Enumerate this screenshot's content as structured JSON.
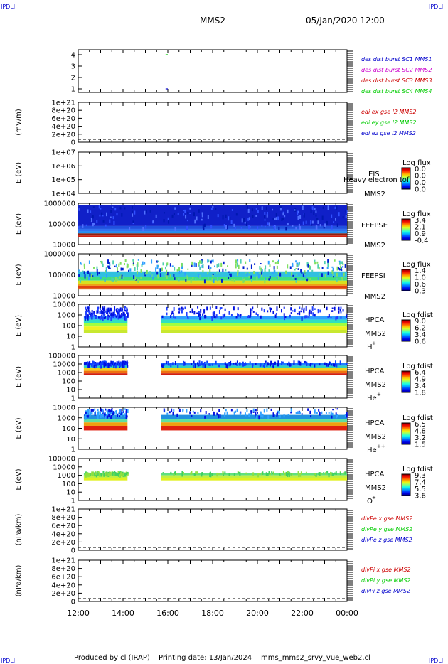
{
  "corner_tags": {
    "top_left": "IPDLI",
    "top_right": "IPDLI",
    "bottom_left": "IPDLI",
    "bottom_right": "IPDLI"
  },
  "header": {
    "title": "MMS2",
    "date": "05/Jan/2020 12:00"
  },
  "footer": {
    "producer": "Produced by cl (IRAP)",
    "printing": "Printing date: 13/Jan/2024",
    "script": "mms_mms2_srvy_vue_web2.cl"
  },
  "colors": {
    "blue": "#0000cc",
    "magenta": "#cc00cc",
    "red": "#cc0000",
    "green": "#00cc00"
  },
  "chart_data": [
    {
      "id": "p1",
      "type": "line",
      "yticks": [
        "4",
        "3",
        "2",
        "1"
      ],
      "ylim": [
        0.5,
        4.5
      ],
      "legend": [
        {
          "text": "des dist burst SC1 MMS1",
          "color": "blue"
        },
        {
          "text": "des dist burst SC2 MMS2",
          "color": "magenta"
        },
        {
          "text": "des dist burst SC3 MMS3",
          "color": "red"
        },
        {
          "text": "des dist burst SC4 MMS4",
          "color": "green"
        }
      ],
      "series": [
        {
          "name": "des dist burst SC4 MMS4",
          "color": "green",
          "x": [
            15.9,
            16.0
          ],
          "y": [
            4,
            4
          ]
        },
        {
          "name": "des dist burst SC1 MMS1",
          "color": "blue",
          "x": [
            15.9,
            16.0
          ],
          "y": [
            1,
            1
          ]
        }
      ]
    },
    {
      "id": "p2",
      "type": "line",
      "ylabel": "(mV/m)",
      "yticks": [
        "1e+21",
        "8e+20",
        "6e+20",
        "4e+20",
        "2e+20",
        "0"
      ],
      "ylim": [
        0,
        1e+21
      ],
      "legend": [
        {
          "text": "edi ex gse l2 MMS2",
          "color": "red"
        },
        {
          "text": "edi ey gse l2 MMS2",
          "color": "green"
        },
        {
          "text": "edi ez gse l2 MMS2",
          "color": "blue"
        }
      ]
    },
    {
      "id": "p3",
      "type": "heatmap",
      "ylabel": "E (eV)",
      "yticks": [
        "1e+07",
        "1e+06",
        "1e+05",
        "1e+04"
      ],
      "right": [
        "EIS",
        "MMS2"
      ],
      "overlay": "Heavy electron tof",
      "colorbar": {
        "title": "Log flux",
        "ticks": [
          "0.0",
          "0.0",
          "0.0",
          "0.0"
        ]
      }
    },
    {
      "id": "p4",
      "type": "heatmap",
      "ylabel": "E (eV)",
      "yticks": [
        "1000000",
        "100000",
        "10000"
      ],
      "right": [
        "FEEPSE",
        "MMS2"
      ],
      "colorbar": {
        "title": "Log flux",
        "ticks": [
          "3.4",
          "2.1",
          "0.9",
          "-0.4"
        ]
      }
    },
    {
      "id": "p5",
      "type": "heatmap",
      "ylabel": "E (eV)",
      "yticks": [
        "1000000",
        "100000",
        "10000"
      ],
      "right": [
        "FEEPSI",
        "MMS2"
      ],
      "colorbar": {
        "title": "Log flux",
        "ticks": [
          "1.4",
          "1.0",
          "0.6",
          "0.3"
        ]
      }
    },
    {
      "id": "p6",
      "type": "heatmap",
      "ylabel": "E (eV)",
      "yticks": [
        "10000",
        "1000",
        "100",
        "10",
        "1"
      ],
      "right": [
        "HPCA",
        "MMS2"
      ],
      "species": "H",
      "sup": "+",
      "colorbar": {
        "title": "Log fdist",
        "ticks": [
          "9.0",
          "6.2",
          "3.4",
          "0.6"
        ]
      }
    },
    {
      "id": "p7",
      "type": "heatmap",
      "ylabel": "E (eV)",
      "yticks": [
        "100000",
        "10000",
        "1000",
        "100",
        "10",
        "1"
      ],
      "right": [
        "HPCA",
        "MMS2"
      ],
      "species": "He",
      "sup": "+",
      "colorbar": {
        "title": "Log fdist",
        "ticks": [
          "6.4",
          "4.9",
          "3.4",
          "1.8"
        ]
      }
    },
    {
      "id": "p8",
      "type": "heatmap",
      "ylabel": "E (eV)",
      "yticks": [
        "10000",
        "1000",
        "100",
        "10",
        "1"
      ],
      "right": [
        "HPCA",
        "MMS2"
      ],
      "species": "He",
      "sup": "++",
      "colorbar": {
        "title": "Log fdist",
        "ticks": [
          "6.5",
          "4.8",
          "3.2",
          "1.5"
        ]
      }
    },
    {
      "id": "p9",
      "type": "heatmap",
      "ylabel": "E (eV)",
      "yticks": [
        "100000",
        "10000",
        "1000",
        "100",
        "10",
        "1"
      ],
      "right": [
        "HPCA",
        "MMS2"
      ],
      "species": "O",
      "sup": "+",
      "colorbar": {
        "title": "Log fdist",
        "ticks": [
          "9.3",
          "7.4",
          "5.5",
          "3.6"
        ]
      }
    },
    {
      "id": "p10",
      "type": "line",
      "ylabel": "(nPa/km)",
      "yticks": [
        "1e+21",
        "8e+20",
        "6e+20",
        "4e+20",
        "2e+20",
        "0"
      ],
      "ylim": [
        0,
        1e+21
      ],
      "legend": [
        {
          "text": "divPe x gse MMS2",
          "color": "red"
        },
        {
          "text": "divPe y gse MMS2",
          "color": "green"
        },
        {
          "text": "divPe z gse MMS2",
          "color": "blue"
        }
      ]
    },
    {
      "id": "p11",
      "type": "line",
      "ylabel": "(nPa/km)",
      "yticks": [
        "1e+21",
        "8e+20",
        "6e+20",
        "4e+20",
        "2e+20",
        "0"
      ],
      "ylim": [
        0,
        1e+21
      ],
      "legend": [
        {
          "text": "divPi x gse MMS2",
          "color": "red"
        },
        {
          "text": "divPi y gse MMS2",
          "color": "green"
        },
        {
          "text": "divPi z gse MMS2",
          "color": "blue"
        }
      ]
    }
  ],
  "time_axis": {
    "ticks": [
      "12:00",
      "14:00",
      "16:00",
      "18:00",
      "20:00",
      "22:00",
      "00:00"
    ],
    "range_hours": [
      12,
      24
    ]
  }
}
